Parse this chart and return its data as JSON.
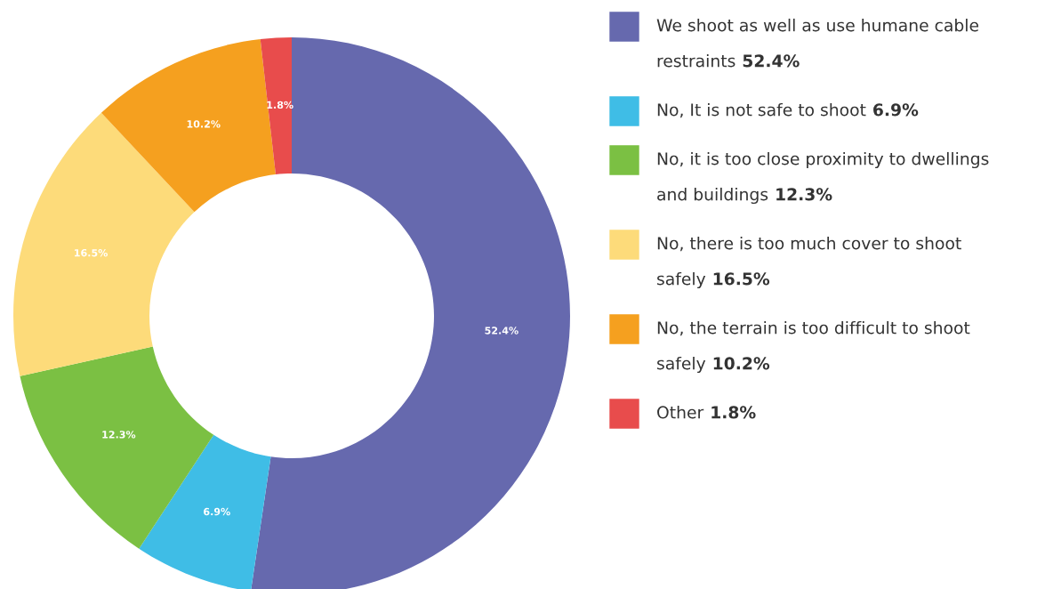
{
  "chart_data": {
    "type": "donut",
    "categories": [
      "We shoot as well as use humane cable restraints",
      "No, It is not safe to shoot",
      "No, it is too close proximity to dwellings and buildings",
      "No, there is too much cover to shoot safely",
      "No, the terrain is too difficult to shoot safely",
      "Other"
    ],
    "values": [
      52.4,
      6.9,
      12.3,
      16.5,
      10.2,
      1.8
    ],
    "colors": [
      "#6669ae",
      "#3fbde6",
      "#7bc043",
      "#fddb7a",
      "#f5a01f",
      "#e84c4c"
    ],
    "value_labels": [
      "52.4%",
      "6.9%",
      "12.3%",
      "16.5%",
      "10.2%",
      "1.8%"
    ],
    "legend": "right"
  }
}
